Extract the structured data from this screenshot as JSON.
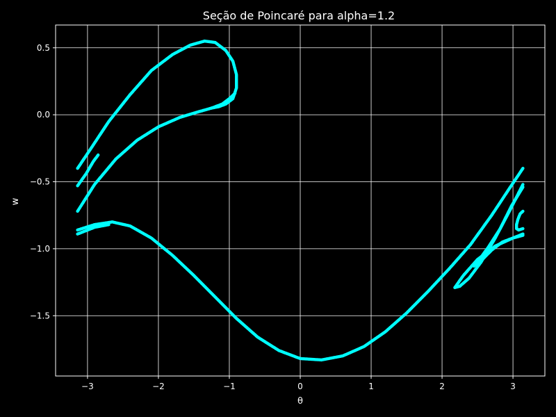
{
  "chart_data": {
    "type": "scatter",
    "title": "Seção de Poincaré para alpha=1.2",
    "xlabel": "θ",
    "ylabel": "w",
    "xlim": [
      -3.45,
      3.45
    ],
    "ylim": [
      -1.95,
      0.67
    ],
    "xticks": [
      -3,
      -2,
      -1,
      0,
      1,
      2,
      3
    ],
    "xtick_labels": [
      "−3",
      "−2",
      "−1",
      "0",
      "1",
      "2",
      "3"
    ],
    "yticks": [
      0.5,
      0.0,
      -0.5,
      -1.0,
      -1.5
    ],
    "ytick_labels": [
      "0.5",
      "0.0",
      "−0.5",
      "−1.0",
      "−1.5"
    ],
    "grid": true,
    "colors": {
      "background": "#000000",
      "points": "#00ffff",
      "grid": "#ffffff",
      "axes": "#ffffff"
    },
    "series": [
      {
        "x": [
          -3.14,
          -2.95,
          -2.7,
          -2.4,
          -2.1,
          -1.8,
          -1.55,
          -1.35,
          -1.2,
          -1.05,
          -0.95,
          -0.9,
          -0.9,
          -0.95,
          -1.05,
          -1.15,
          -1.25
        ],
        "y": [
          -0.4,
          -0.25,
          -0.05,
          0.15,
          0.33,
          0.45,
          0.52,
          0.55,
          0.54,
          0.48,
          0.4,
          0.3,
          0.2,
          0.12,
          0.08,
          0.06,
          0.05
        ]
      },
      {
        "x": [
          -3.14,
          -2.9,
          -2.6,
          -2.3,
          -2.0,
          -1.7,
          -1.45,
          -1.25,
          -1.1,
          -1.0,
          -0.92
        ],
        "y": [
          -0.72,
          -0.52,
          -0.33,
          -0.19,
          -0.09,
          -0.02,
          0.02,
          0.05,
          0.08,
          0.12,
          0.16
        ]
      },
      {
        "x": [
          -3.14,
          -3.02,
          -2.92,
          -2.85
        ],
        "y": [
          -0.53,
          -0.44,
          -0.35,
          -0.3
        ]
      },
      {
        "x": [
          -3.14,
          -2.9,
          -2.65,
          -2.4,
          -2.1,
          -1.8,
          -1.5,
          -1.2,
          -0.9,
          -0.6,
          -0.3,
          0.0,
          0.3,
          0.6,
          0.9,
          1.2,
          1.5,
          1.8,
          2.1,
          2.4,
          2.7,
          2.95,
          3.14
        ],
        "y": [
          -0.86,
          -0.82,
          -0.8,
          -0.83,
          -0.92,
          -1.05,
          -1.2,
          -1.36,
          -1.52,
          -1.66,
          -1.76,
          -1.82,
          -1.83,
          -1.8,
          -1.73,
          -1.62,
          -1.48,
          -1.32,
          -1.15,
          -0.97,
          -0.75,
          -0.55,
          -0.4
        ]
      },
      {
        "x": [
          -3.14,
          -2.9,
          -2.7
        ],
        "y": [
          -0.89,
          -0.84,
          -0.82
        ]
      },
      {
        "x": [
          3.14,
          2.95,
          2.75,
          2.55,
          2.38,
          2.25,
          2.18,
          2.3,
          2.5,
          2.75,
          3.0,
          3.14
        ],
        "y": [
          -0.52,
          -0.72,
          -0.92,
          -1.1,
          -1.22,
          -1.28,
          -1.29,
          -1.2,
          -1.08,
          -0.98,
          -0.92,
          -0.89
        ]
      },
      {
        "x": [
          3.14,
          2.98,
          2.82,
          2.65,
          2.5,
          2.45,
          2.55,
          2.7,
          2.85,
          3.0,
          3.14
        ],
        "y": [
          -0.54,
          -0.68,
          -0.85,
          -0.99,
          -1.1,
          -1.13,
          -1.09,
          -1.01,
          -0.95,
          -0.92,
          -0.9
        ]
      },
      {
        "x": [
          3.14,
          3.1,
          3.07,
          3.05,
          3.05,
          3.08,
          3.14
        ],
        "y": [
          -0.72,
          -0.74,
          -0.78,
          -0.82,
          -0.85,
          -0.86,
          -0.85
        ]
      }
    ]
  }
}
